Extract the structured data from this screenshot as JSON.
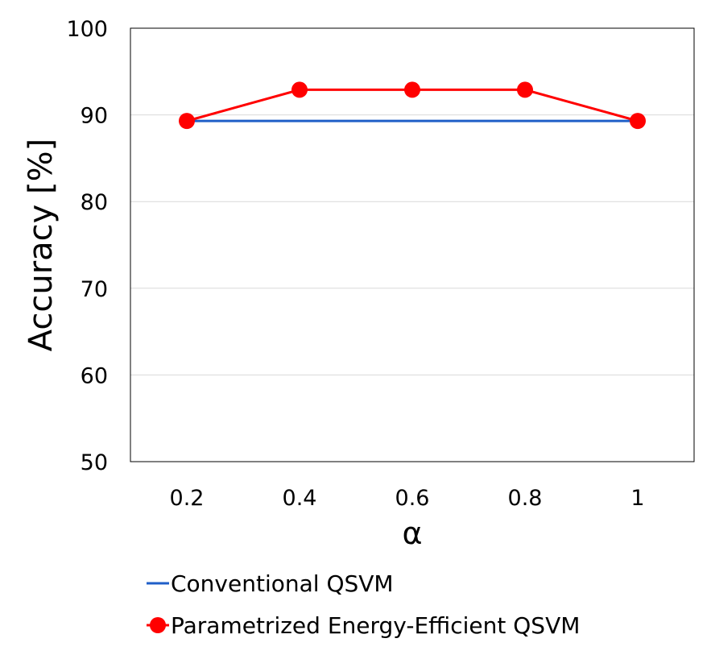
{
  "chart_data": {
    "type": "line",
    "title": "",
    "xlabel": "α",
    "ylabel": "Accuracy [%]",
    "categories": [
      "0.2",
      "0.4",
      "0.6",
      "0.8",
      "1"
    ],
    "ylim": [
      50,
      100
    ],
    "yticks": [
      50,
      60,
      70,
      80,
      90,
      100
    ],
    "grid": true,
    "legend_position": "bottom",
    "series": [
      {
        "name": "Conventional QSVM",
        "values": [
          89.3,
          89.3,
          89.3,
          89.3,
          89.3
        ],
        "color": "#1f5fc8",
        "marker": "none"
      },
      {
        "name": "Parametrized Energy-Efficient QSVM",
        "values": [
          89.3,
          92.9,
          92.9,
          92.9,
          89.3
        ],
        "color": "#ff0000",
        "marker": "circle"
      }
    ]
  }
}
